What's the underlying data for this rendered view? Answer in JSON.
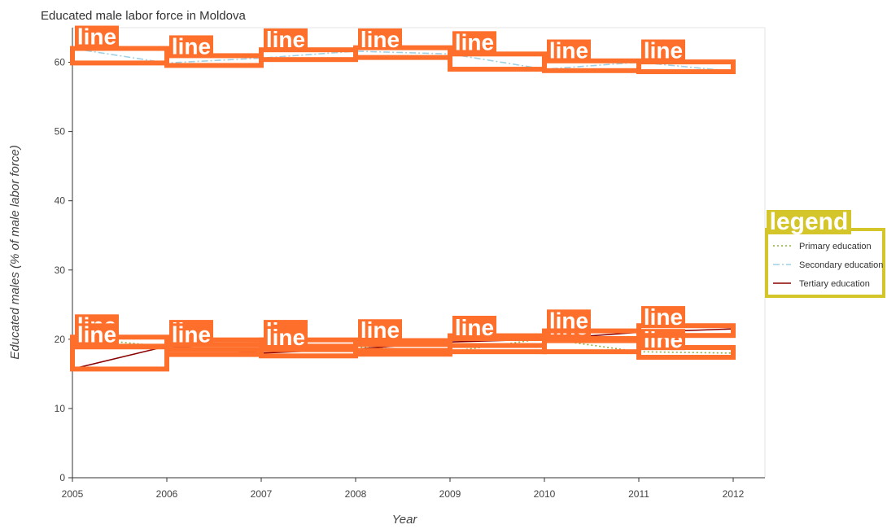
{
  "chart_data": {
    "type": "line",
    "title": "Educated male labor force in Moldova",
    "xlabel": "Year",
    "ylabel": "Educated males (% of male labor force)",
    "x": [
      2005,
      2006,
      2007,
      2008,
      2009,
      2010,
      2011,
      2012
    ],
    "ylim": [
      0,
      65
    ],
    "yticks": [
      0,
      10,
      20,
      30,
      40,
      50,
      60
    ],
    "grid": false,
    "legend_position": "right",
    "legend_title": "legend",
    "mark_label": "line",
    "series": [
      {
        "name": "Primary education",
        "values": [
          20.3,
          18.9,
          19.5,
          18.9,
          18.2,
          20.1,
          18.2,
          18.0
        ],
        "color": "#8db33c",
        "dash": "dotted"
      },
      {
        "name": "Secondary education",
        "values": [
          62.0,
          59.9,
          60.6,
          61.6,
          61.2,
          59.0,
          60.0,
          58.7
        ],
        "color": "#9ed1e6",
        "dash": "dashdot"
      },
      {
        "name": "Tertiary education",
        "values": [
          15.7,
          19.0,
          18.0,
          18.6,
          19.6,
          20.0,
          21.0,
          21.5
        ],
        "color": "#8b0000",
        "dash": "solid"
      }
    ]
  },
  "colors": {
    "badge": "#ff6f2c",
    "legend_badge": "#d4c62a"
  }
}
